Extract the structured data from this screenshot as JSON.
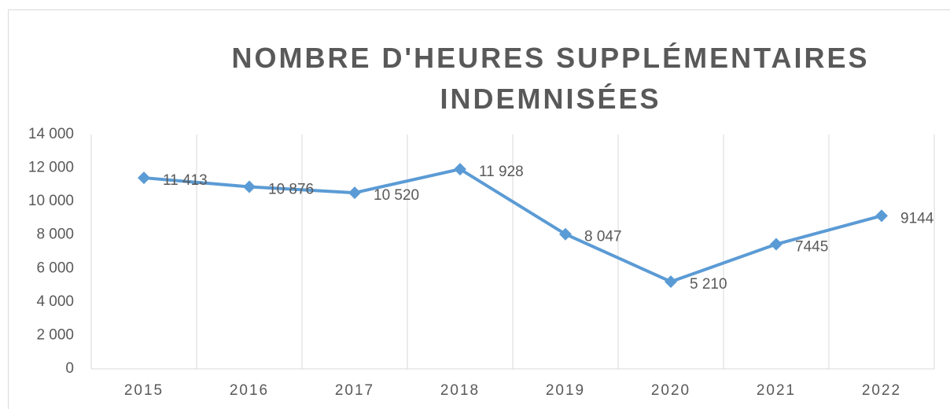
{
  "chart_data": {
    "type": "line",
    "title": "NOMBRE D'HEURES SUPPLÉMENTAIRES INDEMNISÉES",
    "categories": [
      "2015",
      "2016",
      "2017",
      "2018",
      "2019",
      "2020",
      "2021",
      "2022"
    ],
    "values": [
      11413,
      10876,
      10520,
      11928,
      8047,
      5210,
      7445,
      9144
    ],
    "value_labels": [
      "11 413",
      "10 876",
      "10 520",
      "11 928",
      "8 047",
      "5 210",
      "7445",
      "9144"
    ],
    "color": "#5b9bd5",
    "ylim": [
      0,
      14000
    ],
    "yticks": [
      0,
      {
        "value": 2000,
        "label": "2 000"
      },
      {
        "value": 4000,
        "label": "4 000"
      },
      {
        "value": 6000,
        "label": "6 000"
      },
      {
        "value": 8000,
        "label": "8 000"
      },
      {
        "value": 10000,
        "label": "10 000"
      },
      {
        "value": 12000,
        "label": "12 000"
      },
      {
        "value": 14000,
        "label": "14 000"
      }
    ],
    "grid": true
  }
}
